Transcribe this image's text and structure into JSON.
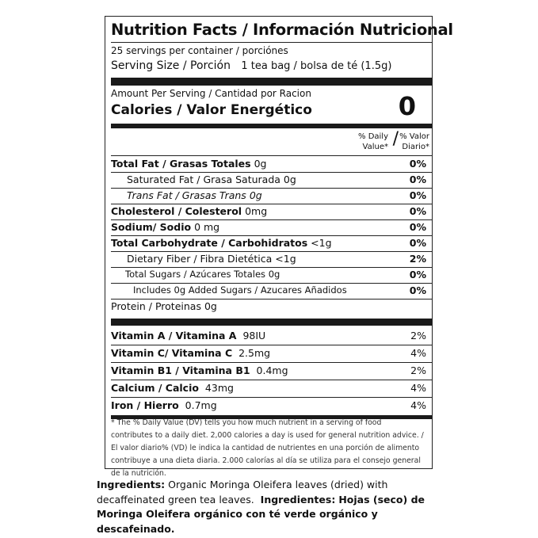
{
  "header": {
    "title": "Nutrition Facts / Información Nutricional",
    "servings": "25 servings per container / porciónes",
    "serving_size_label": "Serving Size / Porción",
    "serving_size_value": "1 tea bag / bolsa de té (1.5g)"
  },
  "calories": {
    "amount_label": "Amount Per Serving / Cantidad por Racion",
    "label": "Calories / Valor Energético",
    "value": "0"
  },
  "dv_header": {
    "left_line1": "% Daily",
    "left_line2": "Value*",
    "slash": "/",
    "right_line1": "% Valor",
    "right_line2": "Diario*"
  },
  "nutrients": [
    {
      "name": "Total Fat / Grasas Totales",
      "amount": "0g",
      "pct": "0%"
    },
    {
      "name": "Saturated Fat / Grasa Saturada",
      "amount": "0g",
      "pct": "0%"
    },
    {
      "name": "Trans Fat / Grasas Trans",
      "amount": "0g",
      "pct": "0%"
    },
    {
      "name": "Cholesterol / Colesterol",
      "amount": "0mg",
      "pct": "0%"
    },
    {
      "name": "Sodium/ Sodio",
      "amount": "0 mg",
      "pct": "0%"
    },
    {
      "name": "Total Carbohydrate / Carbohidratos",
      "amount": "<1g",
      "pct": "0%"
    },
    {
      "name": "Dietary Fiber / Fibra Dietética",
      "amount": "<1g",
      "pct": "2%"
    },
    {
      "name": "Total Sugars / Azúcares Totales",
      "amount": "0g",
      "pct": "0%"
    },
    {
      "name": "Includes 0g Added Sugars / Azucares Añadidos",
      "amount": "",
      "pct": "0%"
    },
    {
      "name": "Protein / Proteinas",
      "amount": "0g",
      "pct": ""
    }
  ],
  "vitamins": [
    {
      "name": "Vitamin A / Vitamina A",
      "amount": "98IU",
      "pct": "2%"
    },
    {
      "name": "Vitamin C/ Vitamina C",
      "amount": "2.5mg",
      "pct": "4%"
    },
    {
      "name": "Vitamin B1 / Vitamina B1",
      "amount": "0.4mg",
      "pct": "2%"
    },
    {
      "name": "Calcium / Calcio",
      "amount": "43mg",
      "pct": "4%"
    },
    {
      "name": "Iron / Hierro",
      "amount": "0.7mg",
      "pct": "4%"
    }
  ],
  "footnote": "* The % Daily Value (DV) tells you how much nutrient in a serving of food contributes to a daily diet. 2,000 calories a day is used for general nutrition advice. / El valor diario% (VD) le indica la cantidad de nutrientes en una porción de alimento contribuye a una dieta diaria. 2.000 calorías al día se utiliza para el consejo general de la nutrición.",
  "ingredients": {
    "en_label": "Ingredients:",
    "en_text": "Organic Moringa Oleifera leaves (dried) with decaffeinated green tea leaves.",
    "es_label": "Ingredientes:",
    "es_text": "Hojas (seco) de Moringa Oleifera orgánico con té verde orgánico y descafeinado."
  }
}
